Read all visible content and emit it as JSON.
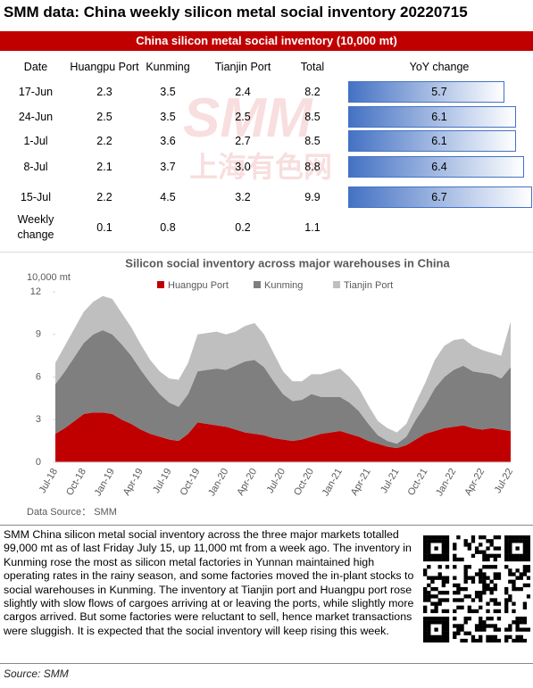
{
  "header": {
    "title": "SMM data: China weekly silicon metal social inventory 20220715"
  },
  "table": {
    "caption": "China silicon metal social inventory (10,000 mt)",
    "columns": [
      "Date",
      "Huangpu Port",
      "Kunming",
      "Tianjin Port",
      "Total",
      "YoY change"
    ],
    "rows": [
      [
        "17-Jun",
        "2.3",
        "3.5",
        "2.4",
        "8.2",
        5.7
      ],
      [
        "24-Jun",
        "2.5",
        "3.5",
        "2.5",
        "8.5",
        6.1
      ],
      [
        "1-Jul",
        "2.2",
        "3.6",
        "2.7",
        "8.5",
        6.1
      ],
      [
        "8-Jul",
        "2.1",
        "3.7",
        "3.0",
        "8.8",
        6.4
      ],
      [
        "15-Jul",
        "2.2",
        "4.5",
        "3.2",
        "9.9",
        6.7
      ],
      [
        "Weekly change",
        "0.1",
        "0.8",
        "0.2",
        "1.1"
      ]
    ],
    "bar_color": "#4472c4"
  },
  "watermark": {
    "logo": "SMM",
    "name": "上海有色网"
  },
  "chart_data": {
    "type": "stacked-area",
    "title": "Silicon social inventory across major warehouses in China",
    "y_label": "10,000 mt",
    "legend": "top",
    "source": "Data Source： SMM",
    "categories": [
      "Jul-18",
      null,
      null,
      "Oct-18",
      null,
      null,
      "Jan-19",
      null,
      null,
      "Apr-19",
      null,
      null,
      "Jul-19",
      null,
      null,
      "Oct-19",
      null,
      null,
      "Jan-20",
      null,
      null,
      "Apr-20",
      null,
      null,
      "Jul-20",
      null,
      null,
      "Oct-20",
      null,
      null,
      "Jan-21",
      null,
      null,
      "Apr-21",
      null,
      null,
      "Jul-21",
      null,
      null,
      "Oct-21",
      null,
      null,
      "Jan-22",
      null,
      null,
      "Apr-22",
      null,
      null,
      "Jul-22"
    ],
    "series": [
      {
        "name": "Huangpu Port",
        "color": "#c00000",
        "values": [
          2.0,
          2.4,
          2.9,
          3.4,
          3.5,
          3.5,
          3.4,
          3.0,
          2.7,
          2.3,
          2.0,
          1.8,
          1.6,
          1.5,
          2.0,
          2.8,
          2.7,
          2.6,
          2.5,
          2.3,
          2.1,
          2.0,
          1.9,
          1.7,
          1.6,
          1.5,
          1.6,
          1.8,
          2.0,
          2.1,
          2.2,
          2.0,
          1.8,
          1.5,
          1.3,
          1.1,
          1.0,
          1.2,
          1.6,
          2.0,
          2.2,
          2.4,
          2.5,
          2.6,
          2.4,
          2.3,
          2.4,
          2.3,
          2.2
        ]
      },
      {
        "name": "Kunming",
        "color": "#7f7f7f",
        "values": [
          3.5,
          4.0,
          4.5,
          5.0,
          5.5,
          5.8,
          5.6,
          5.3,
          4.8,
          4.2,
          3.6,
          3.0,
          2.6,
          2.4,
          2.8,
          3.6,
          3.8,
          4.0,
          4.0,
          4.5,
          5.0,
          5.2,
          4.8,
          4.0,
          3.2,
          2.8,
          2.8,
          3.0,
          2.6,
          2.5,
          2.4,
          2.2,
          1.8,
          1.2,
          0.6,
          0.4,
          0.3,
          0.6,
          1.4,
          2.0,
          3.0,
          3.6,
          4.0,
          4.2,
          4.0,
          4.0,
          3.8,
          3.6,
          4.5
        ]
      },
      {
        "name": "Tianjin Port",
        "color": "#bfbfbf",
        "values": [
          1.5,
          1.8,
          2.0,
          2.2,
          2.3,
          2.4,
          2.5,
          2.2,
          2.0,
          1.8,
          1.6,
          1.6,
          1.7,
          1.9,
          2.2,
          2.6,
          2.6,
          2.6,
          2.5,
          2.4,
          2.5,
          2.6,
          2.3,
          2.0,
          1.6,
          1.4,
          1.3,
          1.4,
          1.6,
          1.8,
          2.0,
          1.8,
          1.6,
          1.3,
          1.0,
          0.9,
          0.8,
          0.9,
          1.2,
          1.6,
          2.0,
          2.2,
          2.1,
          1.9,
          1.8,
          1.6,
          1.5,
          1.6,
          3.2
        ]
      }
    ],
    "ylim": [
      0,
      12
    ],
    "yticks": [
      0,
      3,
      6,
      9,
      12
    ]
  },
  "body": {
    "paragraph": "SMM China silicon metal social inventory across the three major markets totalled 99,000 mt as of last Friday July 15, up 11,000 mt from a week ago. The inventory in Kunming rose the most as silicon metal factories in Yunnan maintained high operating rates in the rainy season, and some factories moved the in-plant stocks to social warehouses in Kunming. The inventory at Tianjin port and Huangpu port rose slightly with slow flows of cargoes arriving at or leaving the ports, while slightly more cargos arrived. But some factories were reluctant to sell, hence market transactions were sluggish. It is expected that the social inventory will keep rising this week."
  },
  "footer": {
    "source": "Source: SMM"
  }
}
